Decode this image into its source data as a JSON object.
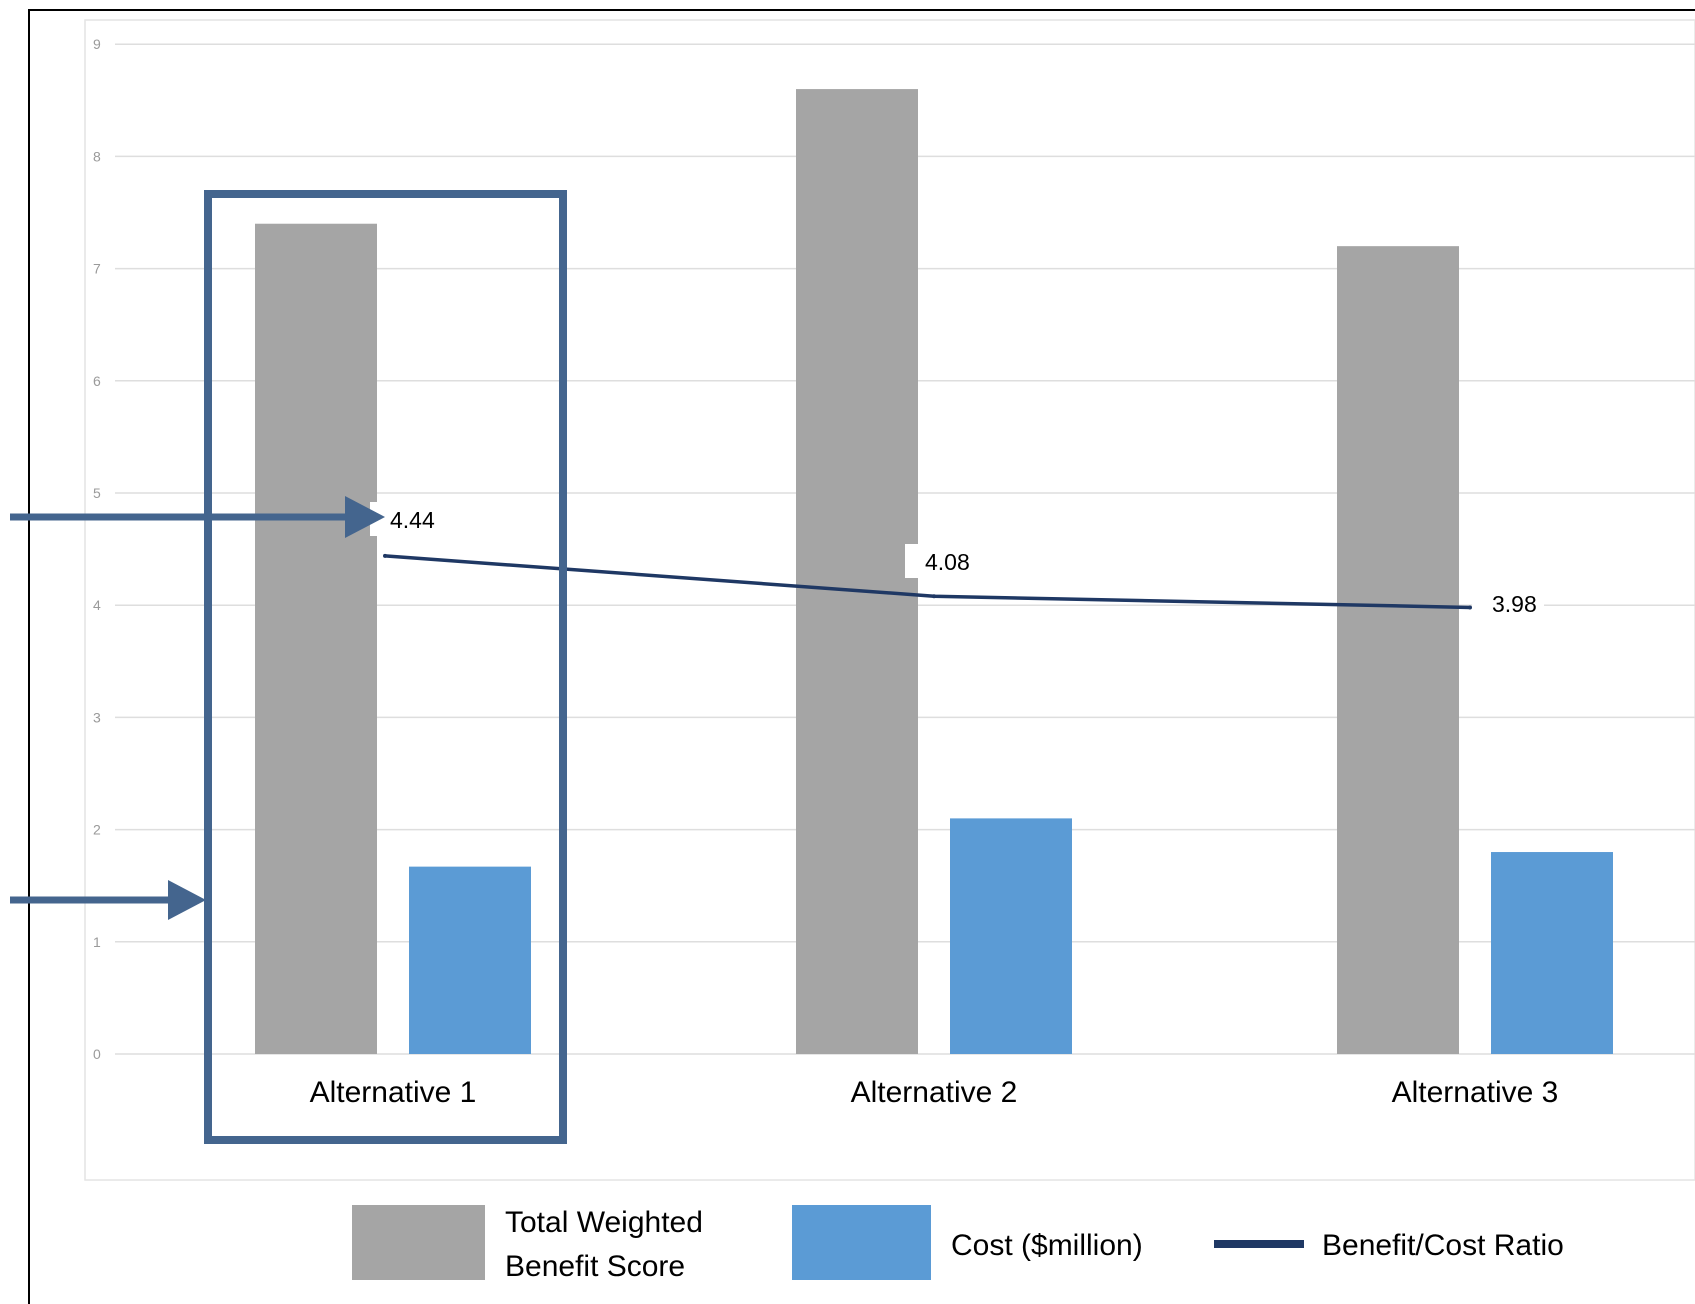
{
  "chart_data": {
    "type": "bar",
    "categories": [
      "Alternative 1",
      "Alternative 2",
      "Alternative 3"
    ],
    "ylim": [
      0,
      9
    ],
    "yticks": [
      "0",
      "1",
      "2",
      "3",
      "4",
      "5",
      "6",
      "7",
      "8",
      "9"
    ],
    "grid": true,
    "series": [
      {
        "name": "Total Weighted Benefit Score",
        "kind": "bar",
        "color": "#a5a5a5",
        "values": [
          7.4,
          8.6,
          7.2
        ]
      },
      {
        "name": "Cost ($million)",
        "kind": "bar",
        "color": "#5b9bd5",
        "values": [
          1.67,
          2.1,
          1.8
        ]
      },
      {
        "name": "Benefit/Cost Ratio",
        "kind": "line",
        "color": "#1f3864",
        "values": [
          4.44,
          4.08,
          3.98
        ],
        "data_labels": [
          "4.44",
          "4.08",
          "3.98"
        ]
      }
    ],
    "legend": {
      "placement": "bottom",
      "entries": [
        {
          "line1": "Total Weighted",
          "line2": "Benefit Score"
        },
        {
          "line1": "Cost ($million)"
        },
        {
          "line1": "Benefit/Cost Ratio"
        }
      ]
    },
    "annotations": {
      "highlight_box_category": "Alternative 1",
      "highlight_color": "#44658e",
      "arrows": [
        "benefit-cost-ratio-arrow",
        "highlight-box-arrow"
      ]
    }
  }
}
